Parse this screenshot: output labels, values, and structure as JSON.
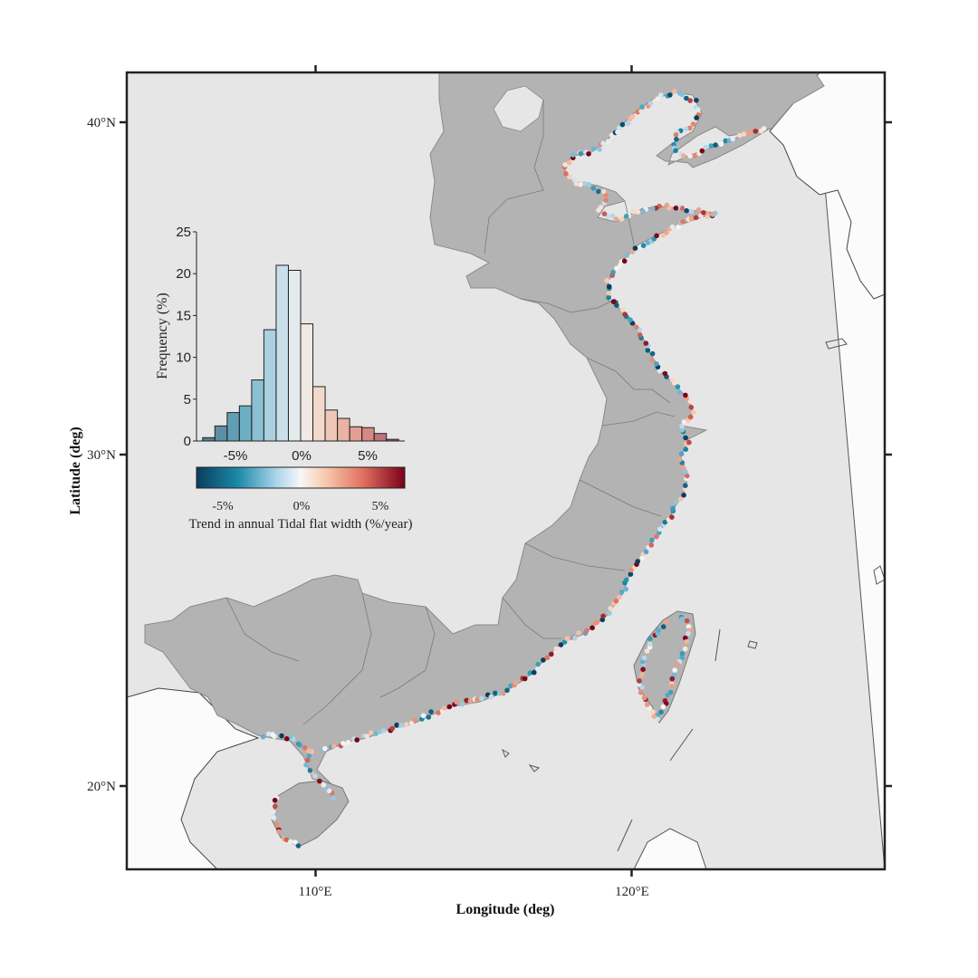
{
  "axes": {
    "x_title": "Longitude (deg)",
    "y_title": "Latitude (deg)",
    "x_ticks": [
      "110°E",
      "120°E"
    ],
    "y_ticks": [
      "40°N",
      "30°N",
      "20°N"
    ]
  },
  "colors": {
    "ocean": "#e6e6e6",
    "foreign_land": "#fbfbfb",
    "china_land": "#b3b3b3",
    "frame": "#222222",
    "diverging_low": "#0b3c5d",
    "diverging_mid": "#f7f7f7",
    "diverging_high": "#7a0019"
  },
  "legend": {
    "title": "Trend in annual Tidal flat width (%/year)",
    "tick_labels": [
      "-5%",
      "0%",
      "5%"
    ]
  },
  "chart_data": {
    "type": "bar",
    "title": "",
    "xlabel": "",
    "ylabel": "Frequency (%)",
    "x_tick_labels": [
      "-5%",
      "0%",
      "5%"
    ],
    "y_ticks": [
      "0",
      "5",
      "10",
      "15",
      "20",
      "25"
    ],
    "ylim": [
      0,
      25
    ],
    "bin_width_pct": 1,
    "bin_centers": [
      -7.5,
      -6.5,
      -5.5,
      -4.5,
      -3.5,
      -2.5,
      -1.5,
      -0.5,
      0.5,
      1.5,
      2.5,
      3.5,
      4.5,
      5.5,
      6.5,
      7.5
    ],
    "values": [
      0.4,
      1.8,
      3.4,
      4.2,
      7.3,
      13.3,
      21.0,
      20.4,
      14.0,
      6.5,
      3.7,
      2.7,
      1.7,
      1.6,
      0.9,
      0.2
    ]
  }
}
